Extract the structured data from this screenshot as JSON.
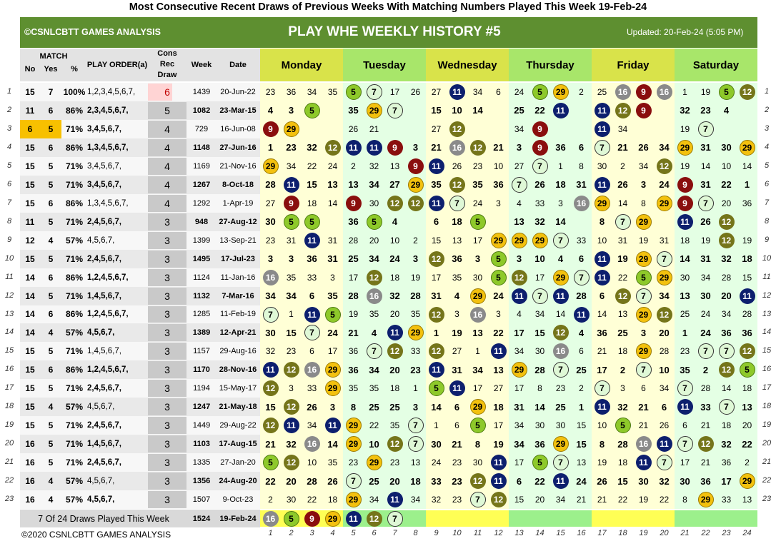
{
  "page_title": "Most Consecutive Recent Draws of Previous Weeks With Matching Numbers Played This Week 19-Feb-24",
  "banner": {
    "brand": "©CSNLCBTT GAMES ANALYSIS",
    "title": "PLAY WHE WEEKLY HISTORY #5",
    "updated": "Updated: 20-Feb-24 (5:05 PM)"
  },
  "headers": {
    "match": "MATCH",
    "no": "No",
    "yes": "Yes",
    "pct": "%",
    "play_order": "PLAY ORDER(a)",
    "cons": "Cons",
    "rec": "Rec",
    "draw": "Draw",
    "week": "Week",
    "date": "Date",
    "days": [
      "Monday",
      "Tuesday",
      "Wednesday",
      "Thursday",
      "Friday",
      "Saturday"
    ]
  },
  "colors": {
    "green": "#5e8f30",
    "header_yellow": "#d9e34a",
    "header_green": "#a8e66a",
    "day_yellow": "#ffffd6",
    "day_green": "#e4ffe4",
    "ball_navy": "#0d1f6e",
    "ball_olive": "#75751a",
    "ball_gold": "#f3c10e",
    "ball_lime": "#8ec92a",
    "ball_gray": "#8a8a8a",
    "ball_red": "#8a0e0e",
    "ball_light": "#dff8d6",
    "today_strip": "#ffff55",
    "today_strip_green": "#9cf08c"
  },
  "rows": [
    {
      "no": "15",
      "yes": "7",
      "pct": "100%",
      "order": "1,2,3,4,5,6,7,",
      "cons": "6",
      "week": "1439",
      "date": "20-Jun-22",
      "nums": [
        "23",
        "36",
        "34",
        "35",
        "5",
        "7",
        "17",
        "26",
        "27",
        "11",
        "34",
        "6",
        "24",
        "5",
        "29",
        "2",
        "25",
        "16",
        "9",
        "16",
        "1",
        "19",
        "5",
        "12"
      ]
    },
    {
      "no": "11",
      "yes": "6",
      "pct": "86%",
      "order": "2,3,4,5,6,7,",
      "cons": "5",
      "week": "1082",
      "date": "23-Mar-15",
      "nums": [
        "4",
        "3",
        "5",
        "",
        "35",
        "29",
        "7",
        "",
        "15",
        "10",
        "14",
        "",
        "25",
        "22",
        "11",
        "",
        "11",
        "12",
        "9",
        "",
        "32",
        "23",
        "4",
        ""
      ]
    },
    {
      "no": "6",
      "yes": "5",
      "pct": "71%",
      "order": "3,4,5,6,7,",
      "cons": "4",
      "week": "729",
      "date": "16-Jun-08",
      "nums": [
        "9",
        "29",
        "",
        "",
        "26",
        "21",
        "",
        "",
        "27",
        "12",
        "",
        "",
        "34",
        "9",
        "",
        "",
        "11",
        "34",
        "",
        "",
        "19",
        "7",
        "",
        ""
      ]
    },
    {
      "no": "15",
      "yes": "6",
      "pct": "86%",
      "order": "1,3,4,5,6,7,",
      "cons": "4",
      "week": "1148",
      "date": "27-Jun-16",
      "nums": [
        "1",
        "23",
        "32",
        "12",
        "11",
        "11",
        "9",
        "3",
        "21",
        "16",
        "12",
        "21",
        "3",
        "9",
        "36",
        "6",
        "7",
        "21",
        "26",
        "34",
        "29",
        "31",
        "30",
        "29"
      ]
    },
    {
      "no": "15",
      "yes": "5",
      "pct": "71%",
      "order": "3,4,5,6,7,",
      "cons": "4",
      "week": "1169",
      "date": "21-Nov-16",
      "nums": [
        "29",
        "34",
        "22",
        "24",
        "2",
        "32",
        "13",
        "9",
        "11",
        "26",
        "23",
        "10",
        "27",
        "7",
        "1",
        "8",
        "30",
        "2",
        "34",
        "12",
        "19",
        "14",
        "10",
        "14"
      ]
    },
    {
      "no": "15",
      "yes": "5",
      "pct": "71%",
      "order": "3,4,5,6,7,",
      "cons": "4",
      "week": "1267",
      "date": "8-Oct-18",
      "nums": [
        "28",
        "11",
        "15",
        "13",
        "13",
        "34",
        "27",
        "29",
        "35",
        "12",
        "35",
        "36",
        "7",
        "26",
        "18",
        "31",
        "11",
        "26",
        "3",
        "24",
        "9",
        "31",
        "22",
        "1"
      ]
    },
    {
      "no": "15",
      "yes": "6",
      "pct": "86%",
      "order": "1,3,4,5,6,7,",
      "cons": "4",
      "week": "1292",
      "date": "1-Apr-19",
      "nums": [
        "27",
        "9",
        "18",
        "14",
        "9",
        "30",
        "12",
        "12",
        "11",
        "7",
        "24",
        "3",
        "4",
        "33",
        "3",
        "16",
        "29",
        "14",
        "8",
        "29",
        "9",
        "7",
        "20",
        "36"
      ]
    },
    {
      "no": "11",
      "yes": "5",
      "pct": "71%",
      "order": "2,4,5,6,7,",
      "cons": "3",
      "week": "948",
      "date": "27-Aug-12",
      "nums": [
        "30",
        "5",
        "5",
        "",
        "36",
        "5",
        "4",
        "",
        "6",
        "18",
        "5",
        "",
        "13",
        "32",
        "14",
        "",
        "8",
        "7",
        "29",
        "",
        "11",
        "26",
        "12",
        ""
      ]
    },
    {
      "no": "12",
      "yes": "4",
      "pct": "57%",
      "order": "4,5,6,7,",
      "cons": "3",
      "week": "1399",
      "date": "13-Sep-21",
      "nums": [
        "23",
        "31",
        "11",
        "31",
        "28",
        "20",
        "10",
        "2",
        "15",
        "13",
        "17",
        "29",
        "29",
        "29",
        "7",
        "33",
        "10",
        "31",
        "19",
        "31",
        "18",
        "19",
        "12",
        "19"
      ]
    },
    {
      "no": "15",
      "yes": "5",
      "pct": "71%",
      "order": "2,4,5,6,7,",
      "cons": "3",
      "week": "1495",
      "date": "17-Jul-23",
      "nums": [
        "3",
        "3",
        "36",
        "31",
        "25",
        "34",
        "24",
        "3",
        "12",
        "36",
        "3",
        "5",
        "3",
        "10",
        "4",
        "6",
        "11",
        "19",
        "29",
        "7",
        "14",
        "31",
        "32",
        "18"
      ]
    },
    {
      "no": "14",
      "yes": "6",
      "pct": "86%",
      "order": "1,2,4,5,6,7,",
      "cons": "3",
      "week": "1124",
      "date": "11-Jan-16",
      "nums": [
        "16",
        "35",
        "33",
        "3",
        "17",
        "12",
        "18",
        "19",
        "17",
        "35",
        "30",
        "5",
        "12",
        "17",
        "29",
        "7",
        "11",
        "22",
        "5",
        "29",
        "30",
        "34",
        "28",
        "15"
      ]
    },
    {
      "no": "14",
      "yes": "5",
      "pct": "71%",
      "order": "1,4,5,6,7,",
      "cons": "3",
      "week": "1132",
      "date": "7-Mar-16",
      "nums": [
        "34",
        "34",
        "6",
        "35",
        "28",
        "16",
        "32",
        "28",
        "31",
        "4",
        "29",
        "24",
        "11",
        "7",
        "11",
        "28",
        "6",
        "12",
        "7",
        "34",
        "13",
        "30",
        "20",
        "11"
      ]
    },
    {
      "no": "14",
      "yes": "6",
      "pct": "86%",
      "order": "1,2,4,5,6,7,",
      "cons": "3",
      "week": "1285",
      "date": "11-Feb-19",
      "nums": [
        "7",
        "1",
        "11",
        "5",
        "19",
        "35",
        "20",
        "35",
        "12",
        "3",
        "16",
        "3",
        "4",
        "34",
        "14",
        "11",
        "14",
        "13",
        "29",
        "12",
        "25",
        "24",
        "34",
        "28"
      ]
    },
    {
      "no": "14",
      "yes": "4",
      "pct": "57%",
      "order": "4,5,6,7,",
      "cons": "3",
      "week": "1389",
      "date": "12-Apr-21",
      "nums": [
        "30",
        "15",
        "7",
        "24",
        "21",
        "4",
        "11",
        "29",
        "1",
        "19",
        "13",
        "22",
        "17",
        "15",
        "12",
        "4",
        "36",
        "25",
        "3",
        "20",
        "1",
        "24",
        "36",
        "36"
      ]
    },
    {
      "no": "15",
      "yes": "5",
      "pct": "71%",
      "order": "1,4,5,6,7,",
      "cons": "3",
      "week": "1157",
      "date": "29-Aug-16",
      "nums": [
        "32",
        "23",
        "6",
        "17",
        "36",
        "7",
        "12",
        "33",
        "12",
        "27",
        "1",
        "11",
        "34",
        "30",
        "16",
        "6",
        "21",
        "18",
        "29",
        "28",
        "23",
        "7",
        "7",
        "12"
      ]
    },
    {
      "no": "15",
      "yes": "6",
      "pct": "86%",
      "order": "1,2,4,5,6,7,",
      "cons": "3",
      "week": "1170",
      "date": "28-Nov-16",
      "nums": [
        "11",
        "12",
        "16",
        "29",
        "36",
        "34",
        "20",
        "23",
        "11",
        "31",
        "34",
        "13",
        "29",
        "28",
        "7",
        "25",
        "17",
        "2",
        "7",
        "10",
        "35",
        "2",
        "12",
        "5"
      ]
    },
    {
      "no": "15",
      "yes": "5",
      "pct": "71%",
      "order": "2,4,5,6,7,",
      "cons": "3",
      "week": "1194",
      "date": "15-May-17",
      "nums": [
        "12",
        "3",
        "33",
        "29",
        "35",
        "35",
        "18",
        "1",
        "5",
        "11",
        "17",
        "27",
        "17",
        "8",
        "23",
        "2",
        "7",
        "3",
        "6",
        "34",
        "7",
        "28",
        "14",
        "18"
      ]
    },
    {
      "no": "15",
      "yes": "4",
      "pct": "57%",
      "order": "4,5,6,7,",
      "cons": "3",
      "week": "1247",
      "date": "21-May-18",
      "nums": [
        "15",
        "12",
        "26",
        "3",
        "8",
        "25",
        "25",
        "3",
        "14",
        "6",
        "29",
        "18",
        "31",
        "14",
        "25",
        "1",
        "11",
        "32",
        "21",
        "6",
        "11",
        "33",
        "7",
        "13"
      ]
    },
    {
      "no": "15",
      "yes": "5",
      "pct": "71%",
      "order": "2,4,5,6,7,",
      "cons": "3",
      "week": "1449",
      "date": "29-Aug-22",
      "nums": [
        "12",
        "11",
        "34",
        "11",
        "29",
        "22",
        "35",
        "7",
        "1",
        "6",
        "5",
        "17",
        "34",
        "30",
        "30",
        "15",
        "10",
        "5",
        "21",
        "26",
        "6",
        "21",
        "18",
        "20"
      ]
    },
    {
      "no": "16",
      "yes": "5",
      "pct": "71%",
      "order": "1,4,5,6,7,",
      "cons": "3",
      "week": "1103",
      "date": "17-Aug-15",
      "nums": [
        "21",
        "32",
        "16",
        "14",
        "29",
        "10",
        "12",
        "7",
        "30",
        "21",
        "8",
        "19",
        "34",
        "36",
        "29",
        "15",
        "8",
        "28",
        "16",
        "11",
        "7",
        "12",
        "32",
        "22"
      ]
    },
    {
      "no": "16",
      "yes": "5",
      "pct": "71%",
      "order": "2,4,5,6,7,",
      "cons": "3",
      "week": "1335",
      "date": "27-Jan-20",
      "nums": [
        "5",
        "12",
        "10",
        "35",
        "23",
        "29",
        "23",
        "13",
        "24",
        "23",
        "30",
        "11",
        "17",
        "5",
        "7",
        "13",
        "19",
        "18",
        "11",
        "7",
        "17",
        "21",
        "36",
        "2"
      ]
    },
    {
      "no": "16",
      "yes": "4",
      "pct": "57%",
      "order": "4,5,6,7,",
      "cons": "3",
      "week": "1356",
      "date": "24-Aug-20",
      "nums": [
        "22",
        "20",
        "28",
        "26",
        "7",
        "25",
        "20",
        "18",
        "33",
        "23",
        "12",
        "11",
        "6",
        "22",
        "11",
        "24",
        "26",
        "15",
        "30",
        "32",
        "30",
        "36",
        "17",
        "29"
      ]
    },
    {
      "no": "16",
      "yes": "4",
      "pct": "57%",
      "order": "4,5,6,7,",
      "cons": "3",
      "week": "1507",
      "date": "9-Oct-23",
      "nums": [
        "2",
        "30",
        "22",
        "18",
        "29",
        "34",
        "11",
        "34",
        "32",
        "23",
        "7",
        "12",
        "15",
        "20",
        "34",
        "21",
        "21",
        "22",
        "19",
        "22",
        "8",
        "29",
        "33",
        "13"
      ]
    }
  ],
  "summary": {
    "text": "7 Of 24 Draws Played This Week",
    "week": "1524",
    "date": "19-Feb-24",
    "nums": [
      "16",
      "5",
      "9",
      "29",
      "11",
      "12",
      "7"
    ]
  },
  "column_numbers": [
    "1",
    "2",
    "3",
    "4",
    "5",
    "6",
    "7",
    "8",
    "9",
    "10",
    "11",
    "12",
    "13",
    "14",
    "15",
    "16",
    "17",
    "18",
    "19",
    "20",
    "21",
    "22",
    "23",
    "24"
  ],
  "row_numbers": [
    "1",
    "2",
    "3",
    "4",
    "5",
    "6",
    "7",
    "8",
    "9",
    "10",
    "11",
    "12",
    "13",
    "14",
    "15",
    "16",
    "17",
    "18",
    "19",
    "20",
    "21",
    "22",
    "23"
  ],
  "footer": "©2020 CSNLCBTT GAMES ANALYSIS",
  "ball_colors": {
    "16": "gray",
    "5": "lime",
    "9": "red",
    "29": "gold",
    "11": "navy",
    "12": "olive",
    "7": "light"
  }
}
